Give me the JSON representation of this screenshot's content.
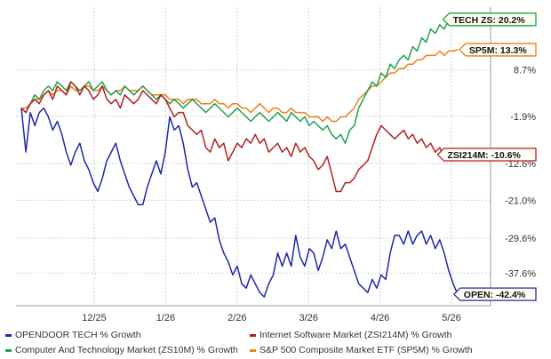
{
  "chart_data": {
    "type": "line",
    "x_ticks": [
      "12/25",
      "1/26",
      "2/26",
      "3/26",
      "4/26",
      "5/26"
    ],
    "y_ticks": [
      "8.7%",
      "-1.9%",
      "-12.6%",
      "-21.0%",
      "-29.6%",
      "-37.6%"
    ],
    "ylim": [
      -45,
      23
    ],
    "grid": true,
    "legend_position": "bottom",
    "series": [
      {
        "name": "OPENDOOR TECH % Growth",
        "end_label": "OPEN: -42.4%",
        "color": "#1f28a8",
        "values": [
          0,
          -10,
          -1,
          -4,
          -1,
          0,
          -2,
          -5,
          -3,
          -6,
          -10,
          -13,
          -10,
          -8,
          -12,
          -14,
          -17,
          -19,
          -16,
          -12,
          -10,
          -8,
          -12,
          -15,
          -18,
          -20,
          -22,
          -22,
          -18,
          -15,
          -12,
          -15,
          -10,
          -2,
          -5,
          -4,
          -8,
          -14,
          -18,
          -17,
          -20,
          -23,
          -26,
          -25,
          -30,
          -33,
          -35,
          -38,
          -36,
          -40,
          -41,
          -38,
          -40,
          -42,
          -43,
          -40,
          -38,
          -33,
          -36,
          -33,
          -36,
          -29,
          -34,
          -36,
          -32,
          -33,
          -37,
          -34,
          -30,
          -32,
          -28,
          -32,
          -31,
          -34,
          -37,
          -40,
          -41,
          -42,
          -39,
          -41,
          -38,
          -39,
          -33,
          -29,
          -29,
          -31,
          -28,
          -31,
          -29,
          -28,
          -31,
          -29,
          -32,
          -30,
          -33,
          -37,
          -40,
          -42.4
        ]
      },
      {
        "name": "Internet Software Market (ZSI214M) % Growth",
        "end_label": "ZSI214M: -10.6%",
        "color": "#b22222",
        "values": [
          0,
          -1,
          1,
          2,
          1,
          3,
          4,
          2,
          5,
          4,
          3,
          6,
          5,
          3,
          5,
          4,
          2,
          3,
          5,
          2,
          1,
          2,
          0,
          3,
          2,
          1,
          2,
          4,
          3,
          2,
          1,
          3,
          2,
          0,
          -2,
          -1,
          -1,
          -4,
          -5,
          -6,
          -5,
          -9,
          -10,
          -7,
          -9,
          -8,
          -12,
          -10,
          -8,
          -9,
          -7,
          -8,
          -6,
          -8,
          -7,
          -10,
          -9,
          -8,
          -10,
          -9,
          -11,
          -8,
          -10,
          -9,
          -11,
          -12,
          -14,
          -13,
          -11,
          -15,
          -19,
          -19,
          -17,
          -17,
          -16,
          -14,
          -13,
          -12,
          -9,
          -6,
          -4,
          -5,
          -6,
          -7,
          -6,
          -5,
          -7,
          -6,
          -8,
          -7,
          -9,
          -8,
          -10,
          -9,
          -11,
          -10,
          -11,
          -10.6
        ]
      },
      {
        "name": "Computer And Technology Market (ZS10M) % Growth",
        "end_label": "TECH ZS: 20.2%",
        "color": "#22a04b",
        "values": [
          0,
          -1,
          1,
          3,
          2,
          4,
          5,
          4,
          6,
          5,
          4,
          6,
          5,
          4,
          5,
          6,
          4,
          5,
          6,
          4,
          3,
          4,
          3,
          5,
          4,
          3,
          4,
          5,
          4,
          3,
          2,
          3,
          2,
          1,
          2,
          1,
          0,
          1,
          2,
          1,
          0,
          -1,
          0,
          1,
          0,
          -1,
          -2,
          -1,
          0,
          -1,
          -2,
          -3,
          -2,
          -1,
          -2,
          -3,
          -2,
          -1,
          -2,
          -3,
          -1,
          -2,
          -3,
          -2,
          -4,
          -3,
          -4,
          -5,
          -4,
          -6,
          -7,
          -6,
          -8,
          -5,
          -4,
          0,
          2,
          4,
          6,
          5,
          8,
          7,
          10,
          9,
          11,
          12,
          11,
          14,
          13,
          16,
          15,
          18,
          17,
          19,
          18,
          20,
          19,
          20.2
        ]
      },
      {
        "name": "S&P 500 Composite Market ETF (SP5M) % Growth",
        "end_label": "SP5M: 13.3%",
        "color": "#f07d1c",
        "values": [
          0,
          0,
          1,
          2,
          2,
          3,
          4,
          3,
          4,
          4,
          3,
          5,
          4,
          4,
          5,
          5,
          4,
          4,
          5,
          4,
          3,
          4,
          4,
          5,
          4,
          4,
          4,
          5,
          4,
          3,
          3,
          3,
          3,
          2,
          2,
          2,
          1,
          2,
          2,
          2,
          1,
          1,
          1,
          2,
          1,
          1,
          0,
          1,
          1,
          0,
          0,
          -1,
          0,
          1,
          0,
          -1,
          0,
          0,
          -1,
          -1,
          0,
          -1,
          -1,
          -1,
          -2,
          -2,
          -2,
          -3,
          -2,
          -3,
          -3,
          -2,
          -2,
          -1,
          0,
          2,
          3,
          4,
          5,
          5,
          6,
          7,
          8,
          8,
          9,
          9,
          10,
          10,
          11,
          11,
          12,
          12,
          12,
          13,
          12,
          13,
          13,
          13.3
        ]
      }
    ]
  }
}
